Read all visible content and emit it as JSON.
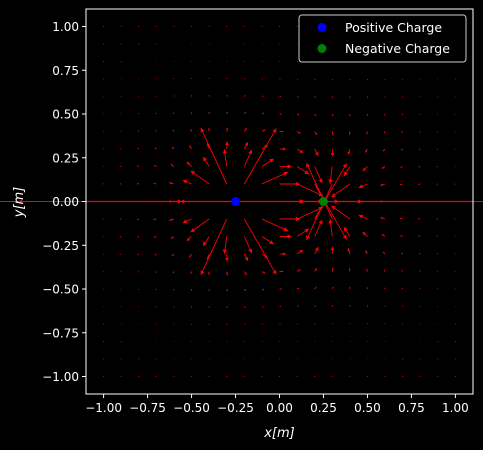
{
  "chart_data": {
    "type": "scatter",
    "xlabel": "x[m]",
    "ylabel": "y[m]",
    "xlim": [
      -1.1,
      1.1
    ],
    "ylim": [
      -1.1,
      1.1
    ],
    "x_ticks": [
      "−1.00",
      "−0.75",
      "−0.50",
      "−0.25",
      "0.00",
      "0.25",
      "0.50",
      "0.75",
      "1.00"
    ],
    "y_ticks": [
      "−1.00",
      "−0.75",
      "−0.50",
      "−0.25",
      "0.00",
      "0.25",
      "0.50",
      "0.75",
      "1.00"
    ],
    "grid": false,
    "legend_position": "top-right",
    "series": [
      {
        "name": "Positive Charge",
        "x": [
          -0.25
        ],
        "y": [
          0.0
        ],
        "color": "#0000ff",
        "marker": "circle"
      },
      {
        "name": "Negative Charge",
        "x": [
          0.25
        ],
        "y": [
          0.0
        ],
        "color": "#008000",
        "marker": "circle"
      }
    ],
    "field": {
      "type": "quiver",
      "color": "#ff0000",
      "grid_min": -1.0,
      "grid_max": 1.0,
      "grid_points": 21,
      "charges": [
        {
          "q": 1,
          "x": -0.25,
          "y": 0.0
        },
        {
          "q": -1,
          "x": 0.25,
          "y": 0.0
        }
      ]
    },
    "colors": {
      "background": "#000000",
      "axes": "#ffffff",
      "field": "#ff0000"
    }
  }
}
